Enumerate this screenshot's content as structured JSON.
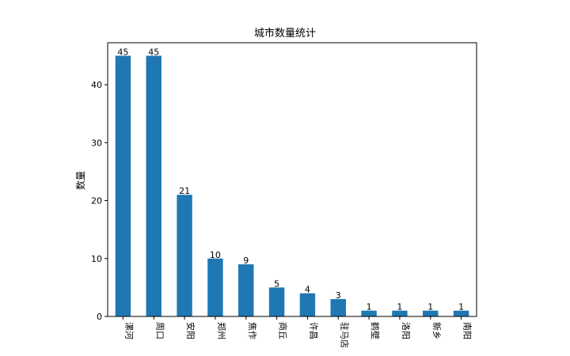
{
  "chart_data": {
    "type": "bar",
    "title": "城市数量统计",
    "xlabel": "",
    "ylabel": "数量",
    "categories": [
      "漯河",
      "周口",
      "安阳",
      "郑州",
      "焦作",
      "商丘",
      "许昌",
      "驻马店",
      "鹤壁",
      "洛阳",
      "新乡",
      "南阳"
    ],
    "values": [
      45,
      45,
      21,
      10,
      9,
      5,
      4,
      3,
      1,
      1,
      1,
      1
    ],
    "yticks": [
      0,
      10,
      20,
      30,
      40
    ],
    "ylim": [
      0,
      47.25
    ],
    "grid": false,
    "colors": {
      "bar": "#1f77b4"
    }
  }
}
